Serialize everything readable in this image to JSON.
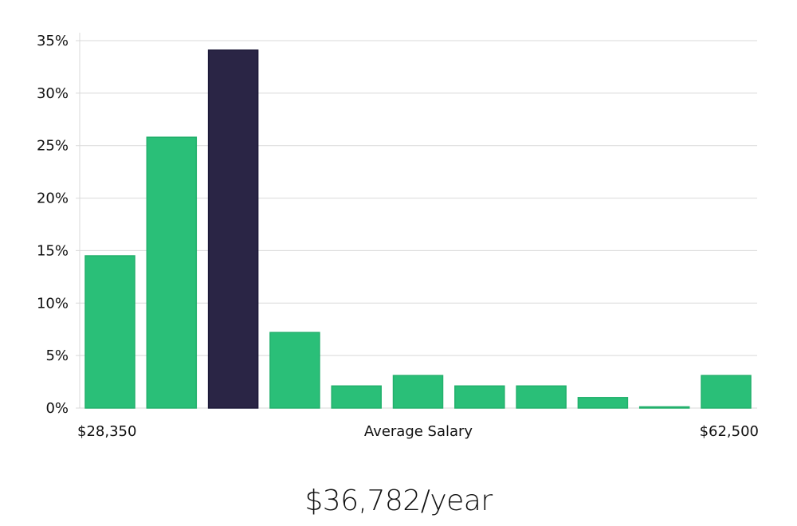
{
  "chart_data": {
    "type": "bar",
    "title": "",
    "xlabel": "Average Salary",
    "ylabel": "",
    "x_range_labels": {
      "min": "$28,350",
      "max": "$62,500"
    },
    "ylim": [
      0,
      35
    ],
    "yticks": [
      0,
      5,
      10,
      15,
      20,
      25,
      30,
      35
    ],
    "ytick_labels": [
      "0%",
      "5%",
      "10%",
      "15%",
      "20%",
      "25%",
      "30%",
      "35%"
    ],
    "values": [
      14.5,
      25.8,
      34.1,
      7.2,
      2.1,
      3.1,
      2.1,
      2.1,
      1.0,
      0.05,
      3.1
    ],
    "highlight_index": 2,
    "grid": true,
    "colors": {
      "bar": "#2abf78",
      "highlight": "#2a2545",
      "grid": "#d9d9d9"
    }
  },
  "summary": {
    "salary_text": "$36,782/year"
  }
}
